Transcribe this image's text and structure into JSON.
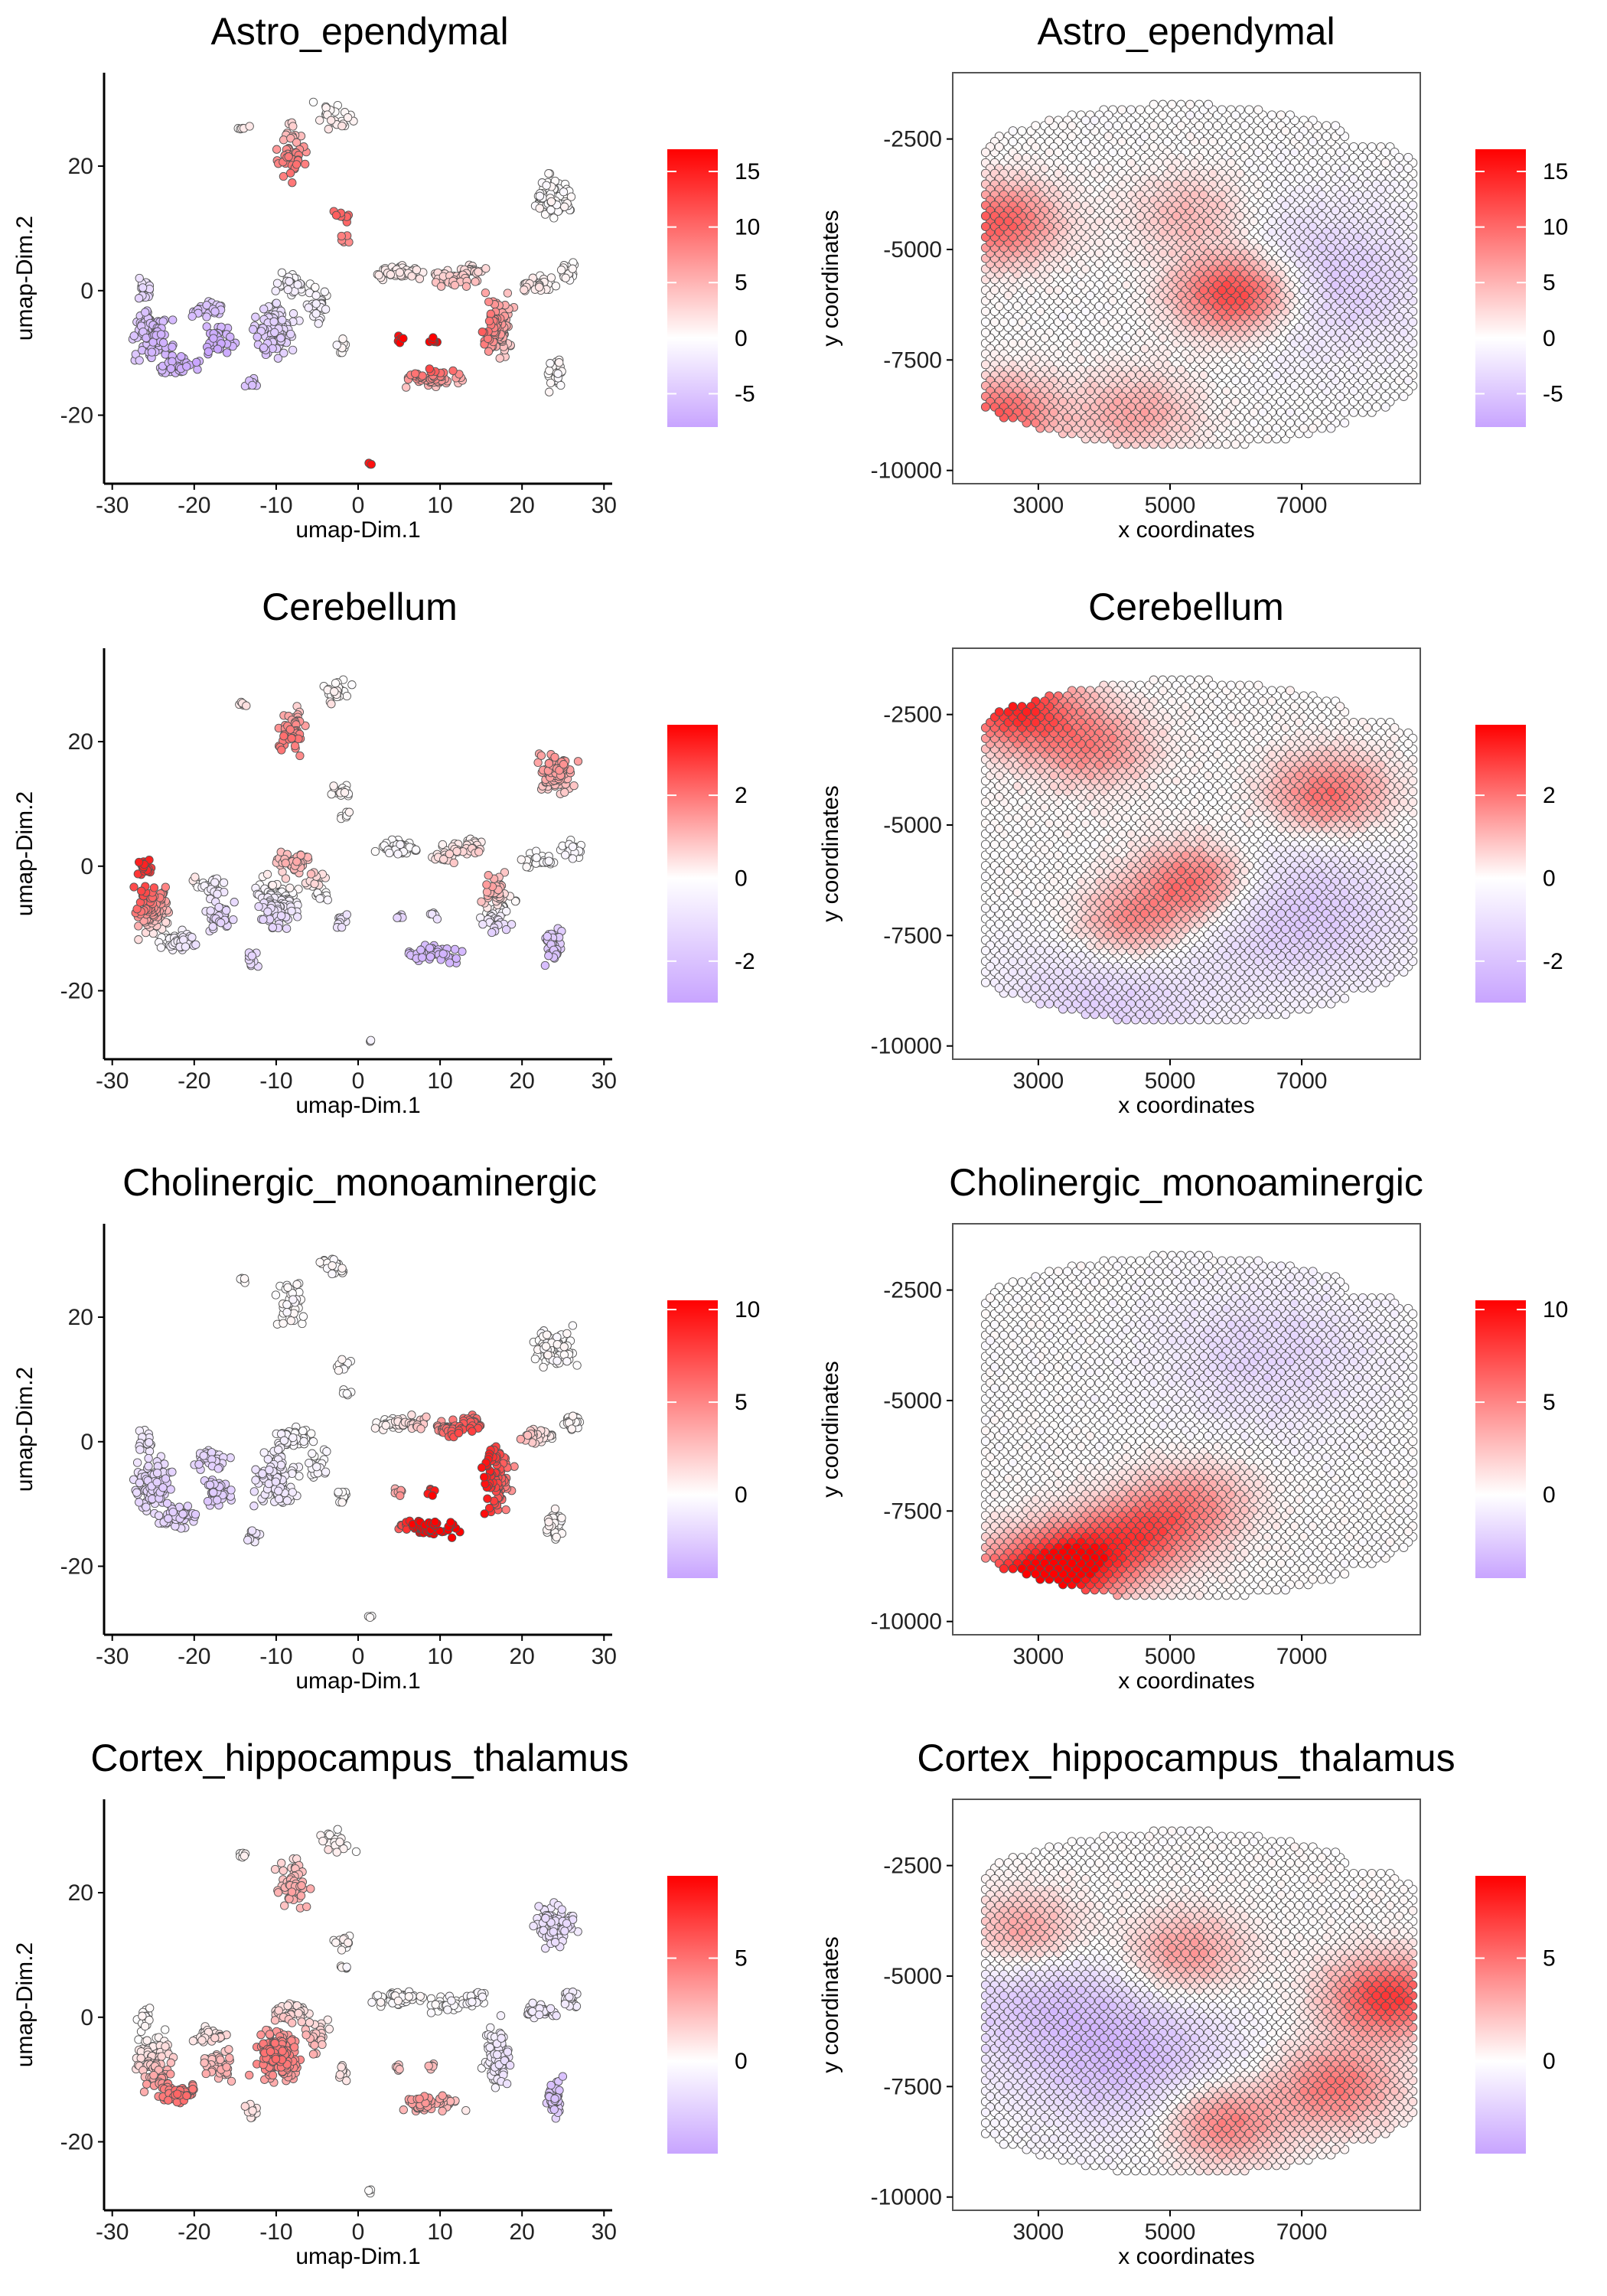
{
  "colors": {
    "low": "#c8a4ff",
    "mid": "#ffffff",
    "high": "#ff0000",
    "point_stroke": "#555555",
    "axis": "#000000",
    "frame": "#555555"
  },
  "chart_data": [
    {
      "type": "scatter",
      "panel": "umap",
      "title": "Astro_ependymal",
      "xlabel": "umap-Dim.1",
      "ylabel": "umap-Dim.2",
      "xlim": [
        -31,
        31
      ],
      "ylim": [
        -31,
        35
      ],
      "xticks": [
        -30,
        -20,
        -10,
        0,
        10,
        20,
        30
      ],
      "yticks": [
        -20,
        0,
        20
      ],
      "legend": {
        "min": -8,
        "max": 17,
        "ticks": [
          15,
          10,
          5,
          0,
          -5
        ]
      },
      "hotspots": [
        {
          "x": -8,
          "y": 20,
          "v": 9
        },
        {
          "x": -2,
          "y": 11,
          "v": 10
        },
        {
          "x": 7,
          "y": -8,
          "v": 12
        },
        {
          "x": 10,
          "y": -8,
          "v": 11
        },
        {
          "x": 1.5,
          "y": -28,
          "v": 16
        },
        {
          "x": 15,
          "y": -3,
          "v": 6
        }
      ],
      "bias": [
        {
          "x": -23,
          "y": -8,
          "v": -5
        },
        {
          "x": -14,
          "y": -12,
          "v": -4
        }
      ]
    },
    {
      "type": "scatter",
      "panel": "spatial",
      "title": "Astro_ependymal",
      "xlabel": "x coordinates",
      "ylabel": "y coordinates",
      "xlim": [
        1700,
        8800
      ],
      "ylim": [
        -10300,
        -1000
      ],
      "xticks": [
        3000,
        5000,
        7000
      ],
      "yticks": [
        -2500,
        -5000,
        -7500,
        -10000
      ],
      "legend": {
        "min": -8,
        "max": 17,
        "ticks": [
          15,
          10,
          5,
          0,
          -5
        ]
      },
      "hotspots": [
        {
          "x": 6000,
          "y": -6000,
          "v": 15
        },
        {
          "x": 2400,
          "y": -4400,
          "v": 11
        },
        {
          "x": 2400,
          "y": -8800,
          "v": 11
        },
        {
          "x": 4500,
          "y": -8700,
          "v": 6
        },
        {
          "x": 5300,
          "y": -4200,
          "v": 5
        }
      ],
      "bias": [
        {
          "x": 7200,
          "y": -5700,
          "v": -5
        }
      ]
    },
    {
      "type": "scatter",
      "panel": "umap",
      "title": "Cerebellum",
      "xlabel": "umap-Dim.1",
      "ylabel": "umap-Dim.2",
      "xlim": [
        -31,
        31
      ],
      "ylim": [
        -31,
        35
      ],
      "xticks": [
        -30,
        -20,
        -10,
        0,
        10,
        20,
        30
      ],
      "yticks": [
        -20,
        0,
        20
      ],
      "legend": {
        "min": -3,
        "max": 3.7,
        "ticks": [
          2,
          0,
          -2
        ]
      },
      "hotspots": [
        {
          "x": -27,
          "y": -5,
          "v": 2.5
        },
        {
          "x": -26,
          "y": 4,
          "v": 3.2
        },
        {
          "x": -9,
          "y": 20,
          "v": 2
        },
        {
          "x": 14,
          "y": -4,
          "v": 2.5
        },
        {
          "x": 24,
          "y": 17,
          "v": 1.5
        },
        {
          "x": -8,
          "y": 0,
          "v": 1.5
        }
      ],
      "bias": [
        {
          "x": 10,
          "y": -14,
          "v": -2.2
        },
        {
          "x": -14,
          "y": -10,
          "v": -1.5
        },
        {
          "x": 25,
          "y": -14,
          "v": -1.5
        }
      ]
    },
    {
      "type": "scatter",
      "panel": "spatial",
      "title": "Cerebellum",
      "xlabel": "x coordinates",
      "ylabel": "y coordinates",
      "xlim": [
        1700,
        8800
      ],
      "ylim": [
        -10300,
        -1000
      ],
      "xticks": [
        3000,
        5000,
        7000
      ],
      "yticks": [
        -2500,
        -5000,
        -7500,
        -10000
      ],
      "legend": {
        "min": -3,
        "max": 3.7,
        "ticks": [
          2,
          0,
          -2
        ]
      },
      "hotspots": [
        {
          "x": 2600,
          "y": -2300,
          "v": 3.2
        },
        {
          "x": 5400,
          "y": -6300,
          "v": 2.5
        },
        {
          "x": 7400,
          "y": -4300,
          "v": 2.2
        },
        {
          "x": 4400,
          "y": -7300,
          "v": 2
        },
        {
          "x": 3800,
          "y": -3200,
          "v": 1.8
        }
      ],
      "bias": [
        {
          "x": 7000,
          "y": -7000,
          "v": -1.8
        },
        {
          "x": 4000,
          "y": -9000,
          "v": -1.5
        }
      ]
    },
    {
      "type": "scatter",
      "panel": "umap",
      "title": "Cholinergic_monoaminergic",
      "xlabel": "umap-Dim.1",
      "ylabel": "umap-Dim.2",
      "xlim": [
        -31,
        31
      ],
      "ylim": [
        -31,
        35
      ],
      "xticks": [
        -30,
        -20,
        -10,
        0,
        10,
        20,
        30
      ],
      "yticks": [
        -20,
        0,
        20
      ],
      "legend": {
        "min": -4.5,
        "max": 10.5,
        "ticks": [
          10,
          5,
          0
        ]
      },
      "hotspots": [
        {
          "x": 12,
          "y": -12,
          "v": 10
        },
        {
          "x": 14,
          "y": -4,
          "v": 7
        },
        {
          "x": 8,
          "y": -14,
          "v": 6
        },
        {
          "x": 14,
          "y": 2,
          "v": 5
        }
      ],
      "bias": [
        {
          "x": -20,
          "y": -8,
          "v": -2.5
        }
      ]
    },
    {
      "type": "scatter",
      "panel": "spatial",
      "title": "Cholinergic_monoaminergic",
      "xlabel": "x coordinates",
      "ylabel": "y coordinates",
      "xlim": [
        1700,
        8800
      ],
      "ylim": [
        -10300,
        -1000
      ],
      "xticks": [
        3000,
        5000,
        7000
      ],
      "yticks": [
        -2500,
        -5000,
        -7500,
        -10000
      ],
      "legend": {
        "min": -4.5,
        "max": 10.5,
        "ticks": [
          10,
          5,
          0
        ]
      },
      "hotspots": [
        {
          "x": 3500,
          "y": -8700,
          "v": 10
        },
        {
          "x": 2500,
          "y": -9300,
          "v": 8
        },
        {
          "x": 4600,
          "y": -8000,
          "v": 6
        },
        {
          "x": 5400,
          "y": -7300,
          "v": 4
        }
      ],
      "bias": [
        {
          "x": 6500,
          "y": -4000,
          "v": -2
        }
      ]
    },
    {
      "type": "scatter",
      "panel": "umap",
      "title": "Cortex_hippocampus_thalamus",
      "xlabel": "umap-Dim.1",
      "ylabel": "umap-Dim.2",
      "xlim": [
        -31,
        31
      ],
      "ylim": [
        -31,
        35
      ],
      "xticks": [
        -30,
        -20,
        -10,
        0,
        10,
        20,
        30
      ],
      "yticks": [
        -20,
        0,
        20
      ],
      "legend": {
        "min": -4.5,
        "max": 9,
        "ticks": [
          5,
          0
        ]
      },
      "hotspots": [
        {
          "x": -10,
          "y": -6,
          "v": 5
        },
        {
          "x": -22,
          "y": -13,
          "v": 5
        },
        {
          "x": 8,
          "y": -12,
          "v": 4
        },
        {
          "x": -7,
          "y": 20,
          "v": 3
        }
      ],
      "bias": [
        {
          "x": 26,
          "y": -12,
          "v": -3
        },
        {
          "x": 24,
          "y": 16,
          "v": -1.5
        }
      ]
    },
    {
      "type": "scatter",
      "panel": "spatial",
      "title": "Cortex_hippocampus_thalamus",
      "xlabel": "x coordinates",
      "ylabel": "y coordinates",
      "xlim": [
        1700,
        8800
      ],
      "ylim": [
        -10300,
        -1000
      ],
      "xticks": [
        3000,
        5000,
        7000
      ],
      "yticks": [
        -2500,
        -5000,
        -7500,
        -10000
      ],
      "legend": {
        "min": -4.5,
        "max": 9,
        "ticks": [
          5,
          0
        ]
      },
      "hotspots": [
        {
          "x": 8300,
          "y": -5500,
          "v": 7
        },
        {
          "x": 5800,
          "y": -8300,
          "v": 5
        },
        {
          "x": 2800,
          "y": -4000,
          "v": 4
        },
        {
          "x": 7500,
          "y": -7500,
          "v": 5
        },
        {
          "x": 5200,
          "y": -4500,
          "v": 4
        }
      ],
      "bias": [
        {
          "x": 4500,
          "y": -7000,
          "v": -3
        },
        {
          "x": 3000,
          "y": -5500,
          "v": -2.5
        }
      ]
    }
  ]
}
